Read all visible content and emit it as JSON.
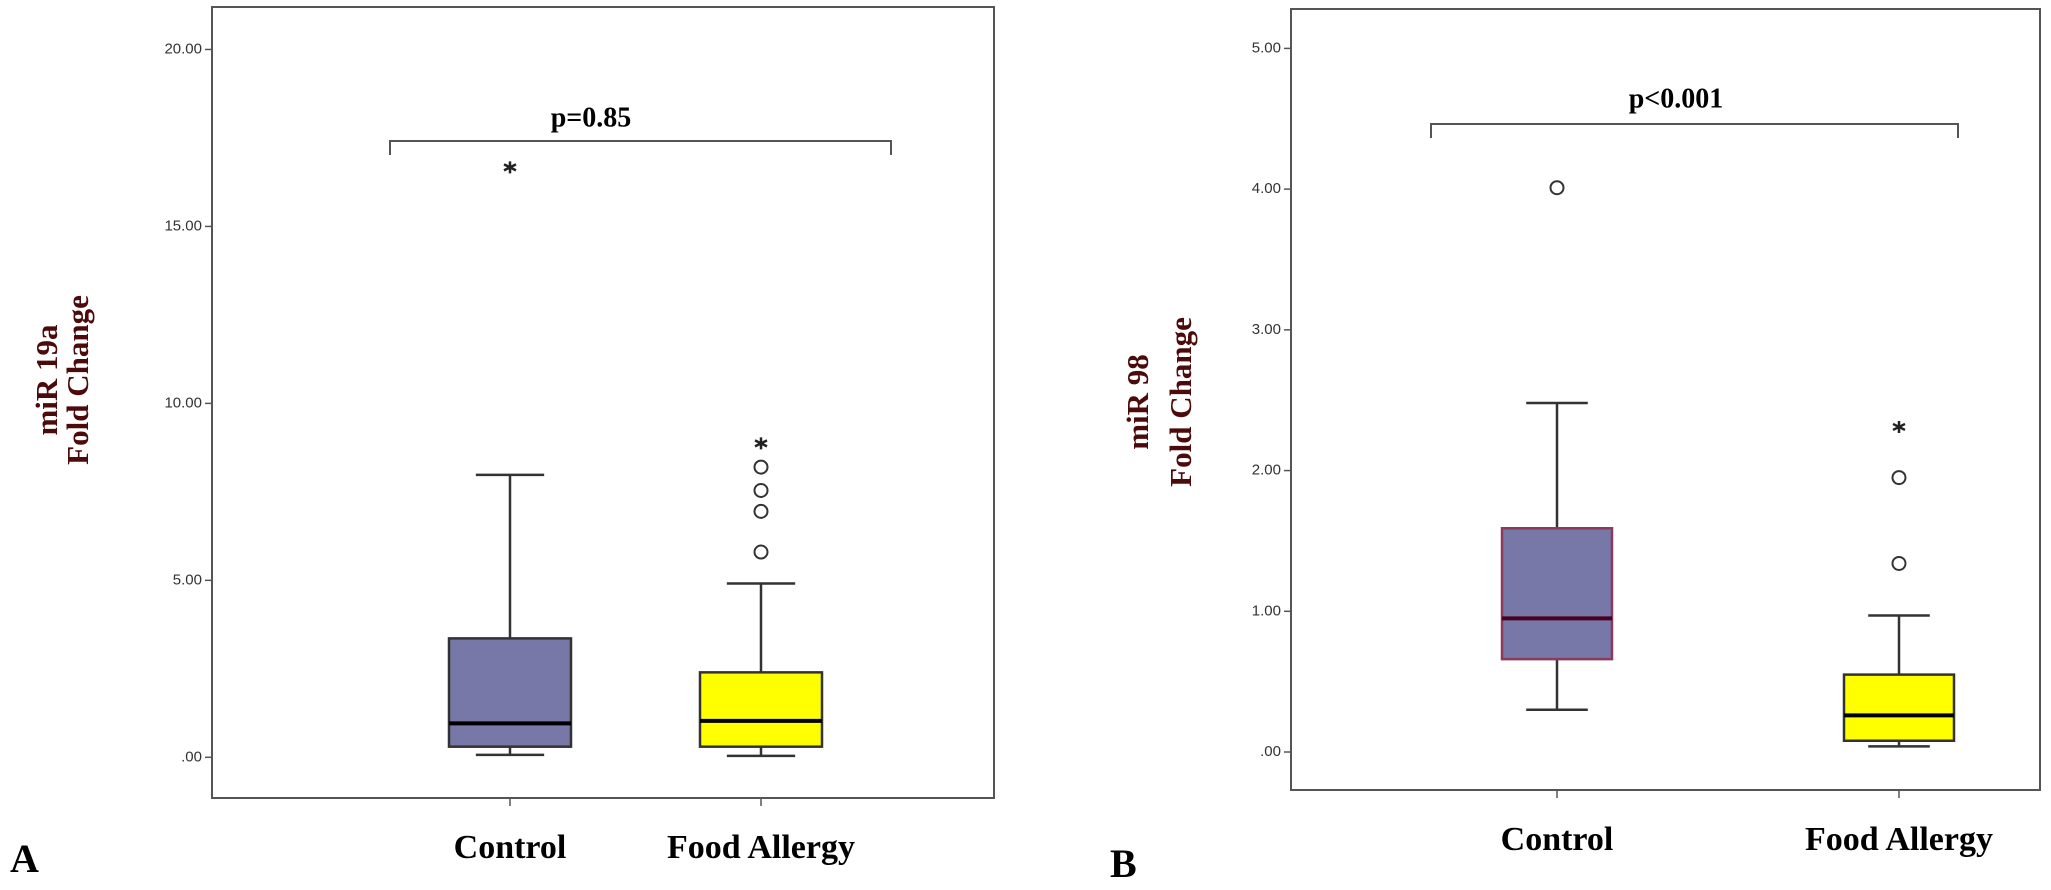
{
  "chart_data": [
    {
      "type": "box",
      "panel_label": "A",
      "annotation": "p=0.85",
      "ylabel": [
        "miR 19a",
        "Fold Change"
      ],
      "categories": [
        "Control",
        "Food Allergy"
      ],
      "colors": [
        "#7878a8",
        "#ffff00"
      ],
      "ylim": [
        -1.15,
        21.2
      ],
      "yticks": [
        {
          "value": 0,
          "label": ".00"
        },
        {
          "value": 5,
          "label": "5.00"
        },
        {
          "value": 10,
          "label": "10.00"
        },
        {
          "value": 15,
          "label": "15.00"
        },
        {
          "value": 20,
          "label": "20.00"
        }
      ],
      "boxes": [
        {
          "whisker_low": 0.07,
          "q1": 0.3,
          "median": 0.96,
          "q3": 3.36,
          "whisker_high": 7.98,
          "outliers": [],
          "extremes": [
            16.67
          ]
        },
        {
          "whisker_low": 0.04,
          "q1": 0.3,
          "median": 1.03,
          "q3": 2.4,
          "whisker_high": 4.91,
          "outliers": [
            5.8,
            6.95,
            7.54,
            8.2
          ],
          "extremes": [
            8.87
          ]
        }
      ]
    },
    {
      "type": "box",
      "panel_label": "B",
      "annotation": "p<0.001",
      "ylabel": [
        "miR 98",
        "Fold Change"
      ],
      "categories": [
        "Control",
        "Food Allergy"
      ],
      "colors": [
        "#7878a8",
        "#ffff00"
      ],
      "ylim": [
        -0.27,
        5.28
      ],
      "yticks": [
        {
          "value": 0,
          "label": ".00"
        },
        {
          "value": 1,
          "label": "1.00"
        },
        {
          "value": 2,
          "label": "2.00"
        },
        {
          "value": 3,
          "label": "3.00"
        },
        {
          "value": 4,
          "label": "4.00"
        },
        {
          "value": 5,
          "label": "5.00"
        }
      ],
      "boxes": [
        {
          "whisker_low": 0.3,
          "q1": 0.66,
          "median": 0.95,
          "q3": 1.59,
          "whisker_high": 2.48,
          "outliers": [
            4.01
          ],
          "extremes": []
        },
        {
          "whisker_low": 0.04,
          "q1": 0.08,
          "median": 0.26,
          "q3": 0.55,
          "whisker_high": 0.97,
          "outliers": [
            1.34,
            1.95
          ],
          "extremes": [
            2.31
          ]
        }
      ]
    }
  ]
}
